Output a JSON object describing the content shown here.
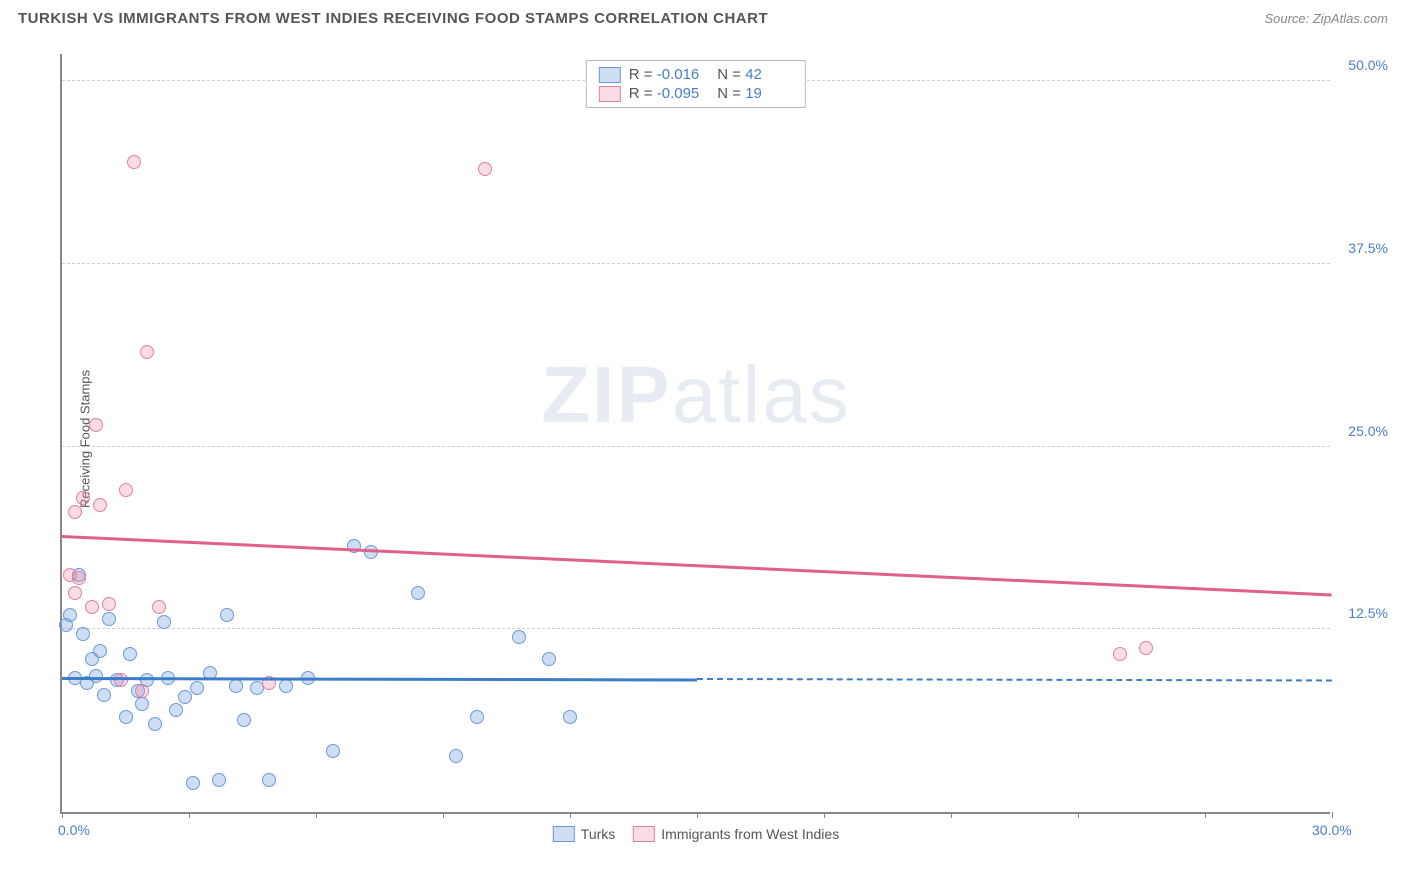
{
  "title": "TURKISH VS IMMIGRANTS FROM WEST INDIES RECEIVING FOOD STAMPS CORRELATION CHART",
  "source": "Source: ZipAtlas.com",
  "ylabel": "Receiving Food Stamps",
  "watermark_a": "ZIP",
  "watermark_b": "atlas",
  "chart": {
    "type": "scatter",
    "background_color": "#ffffff",
    "grid_color": "#d0d0d0",
    "axis_color": "#888888",
    "tick_label_color": "#4a7ec9",
    "tick_fontsize": 14,
    "label_fontsize": 13,
    "xlim": [
      0,
      30
    ],
    "ylim": [
      0,
      52
    ],
    "x_tick_positions": [
      0,
      3,
      6,
      9,
      12,
      15,
      18,
      21,
      24,
      27,
      30
    ],
    "x_tick_labels": {
      "0": "0.0%",
      "30": "30.0%"
    },
    "y_grid": [
      {
        "v": 12.5,
        "label": "12.5%"
      },
      {
        "v": 25.0,
        "label": "25.0%"
      },
      {
        "v": 37.5,
        "label": "37.5%"
      },
      {
        "v": 50.0,
        "label": "50.0%"
      }
    ],
    "marker_radius": 7,
    "marker_stroke_width": 1.5,
    "series": [
      {
        "name": "Turks",
        "fill": "rgba(120,160,220,0.35)",
        "stroke": "#6a9bd8",
        "reg": {
          "x0": 0,
          "y0": 9.1,
          "x1": 15,
          "y1": 9.0,
          "dash_x1": 30,
          "dash_y1": 8.9,
          "color": "#3d7cc9"
        },
        "R": "-0.016",
        "N": "42",
        "points": [
          [
            0.1,
            12.8
          ],
          [
            0.3,
            9.2
          ],
          [
            0.4,
            16.2
          ],
          [
            0.5,
            12.2
          ],
          [
            0.6,
            8.8
          ],
          [
            0.7,
            10.5
          ],
          [
            0.8,
            9.3
          ],
          [
            0.9,
            11.0
          ],
          [
            1.0,
            8.0
          ],
          [
            1.1,
            13.2
          ],
          [
            1.3,
            9.0
          ],
          [
            1.5,
            6.5
          ],
          [
            1.6,
            10.8
          ],
          [
            1.8,
            8.3
          ],
          [
            1.9,
            7.4
          ],
          [
            2.0,
            9.0
          ],
          [
            2.2,
            6.0
          ],
          [
            2.4,
            13.0
          ],
          [
            2.5,
            9.2
          ],
          [
            2.7,
            7.0
          ],
          [
            2.9,
            7.9
          ],
          [
            3.1,
            2.0
          ],
          [
            3.2,
            8.5
          ],
          [
            3.5,
            9.5
          ],
          [
            3.7,
            2.2
          ],
          [
            3.9,
            13.5
          ],
          [
            4.1,
            8.6
          ],
          [
            4.3,
            6.3
          ],
          [
            4.6,
            8.5
          ],
          [
            4.9,
            2.2
          ],
          [
            5.3,
            8.6
          ],
          [
            5.8,
            9.2
          ],
          [
            6.4,
            4.2
          ],
          [
            6.9,
            18.2
          ],
          [
            7.3,
            17.8
          ],
          [
            8.4,
            15.0
          ],
          [
            9.3,
            3.8
          ],
          [
            9.8,
            6.5
          ],
          [
            10.8,
            12.0
          ],
          [
            11.5,
            10.5
          ],
          [
            12.0,
            6.5
          ],
          [
            0.2,
            13.5
          ]
        ]
      },
      {
        "name": "Immigrants from West Indies",
        "fill": "rgba(235,140,170,0.30)",
        "stroke": "#e47fa0",
        "reg": {
          "x0": 0,
          "y0": 18.8,
          "x1": 30,
          "y1": 14.8,
          "color": "#e05f8b"
        },
        "R": "-0.095",
        "N": "19",
        "points": [
          [
            0.2,
            16.2
          ],
          [
            0.3,
            20.5
          ],
          [
            0.4,
            16.0
          ],
          [
            0.5,
            21.5
          ],
          [
            0.7,
            14.0
          ],
          [
            0.8,
            26.5
          ],
          [
            0.9,
            21.0
          ],
          [
            1.1,
            14.2
          ],
          [
            1.4,
            9.0
          ],
          [
            1.5,
            22.0
          ],
          [
            1.7,
            44.5
          ],
          [
            1.9,
            8.3
          ],
          [
            2.0,
            31.5
          ],
          [
            2.3,
            14.0
          ],
          [
            4.9,
            8.8
          ],
          [
            10.0,
            44.0
          ],
          [
            25.0,
            10.8
          ],
          [
            25.6,
            11.2
          ],
          [
            0.3,
            15.0
          ]
        ]
      }
    ],
    "legend_top": {
      "R_label": "R =",
      "N_label": "N ="
    },
    "legend_bottom_labels": [
      "Turks",
      "Immigrants from West Indies"
    ]
  }
}
